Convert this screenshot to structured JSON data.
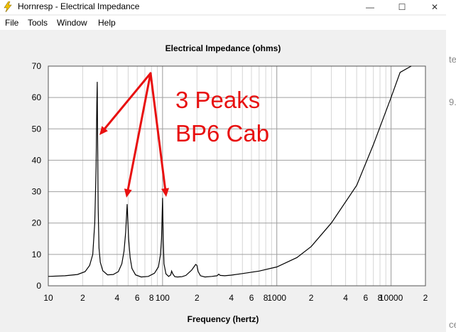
{
  "window": {
    "title": "Hornresp - Electrical Impedance",
    "minimize": "—",
    "maximize": "☐",
    "close": "✕"
  },
  "menu": {
    "items": [
      "File",
      "Tools",
      "Window",
      "Help"
    ]
  },
  "annotation": {
    "line1": "3 Peaks",
    "line2": "BP6 Cab",
    "color": "#e81010"
  },
  "right_strip": {
    "texts": [
      "te",
      "9.",
      "ce"
    ]
  },
  "chart_data": {
    "type": "line",
    "title": "Electrical Impedance (ohms)",
    "xlabel": "Frequency (hertz)",
    "ylabel": "",
    "xscale": "log",
    "xlim": [
      10,
      20000
    ],
    "ylim": [
      0,
      70
    ],
    "yticks": [
      "0",
      "10",
      "20",
      "30",
      "40",
      "50",
      "60",
      "70"
    ],
    "xticks": [
      "10",
      "2",
      "4",
      "6",
      "8",
      "100",
      "2",
      "4",
      "6",
      "8",
      "1000",
      "2",
      "4",
      "6",
      "8",
      "10000",
      "2"
    ],
    "grid": true,
    "series": [
      {
        "x": [
          10,
          14,
          18,
          21,
          23,
          24.5,
          25.5,
          26.2,
          26.6,
          26.8,
          27,
          27.3,
          27.8,
          28.5,
          30,
          33,
          37,
          41,
          44,
          46,
          47.5,
          48.5,
          49,
          49.5,
          50.5,
          52,
          54,
          58,
          65,
          75,
          85,
          92,
          96,
          98,
          99,
          100,
          100.6,
          101.5,
          103,
          107,
          113,
          118,
          120,
          123,
          128,
          135,
          148,
          160,
          180,
          195,
          200,
          205,
          215,
          235,
          270,
          300,
          310,
          320,
          350,
          400,
          500,
          700,
          1000,
          1500,
          2000,
          3000,
          5000,
          7000,
          10000,
          12000,
          15000
        ],
        "values": [
          3,
          3.2,
          3.6,
          4.5,
          6.5,
          10,
          20,
          38,
          58,
          65,
          48,
          25,
          12,
          7.5,
          4.8,
          3.5,
          3.6,
          4.5,
          7,
          11,
          17,
          23,
          26,
          22,
          15,
          9,
          5.5,
          3.5,
          2.8,
          3,
          4,
          6,
          10,
          15,
          22,
          28,
          22,
          14,
          7,
          3.8,
          3,
          3.5,
          4.7,
          3.8,
          2.9,
          2.8,
          2.9,
          3.3,
          5,
          6.8,
          6.5,
          4.5,
          3.2,
          2.8,
          3,
          3.2,
          3.7,
          3.3,
          3.2,
          3.4,
          3.9,
          4.7,
          6,
          9,
          12.5,
          20,
          32,
          45,
          60,
          68,
          78
        ]
      }
    ]
  }
}
